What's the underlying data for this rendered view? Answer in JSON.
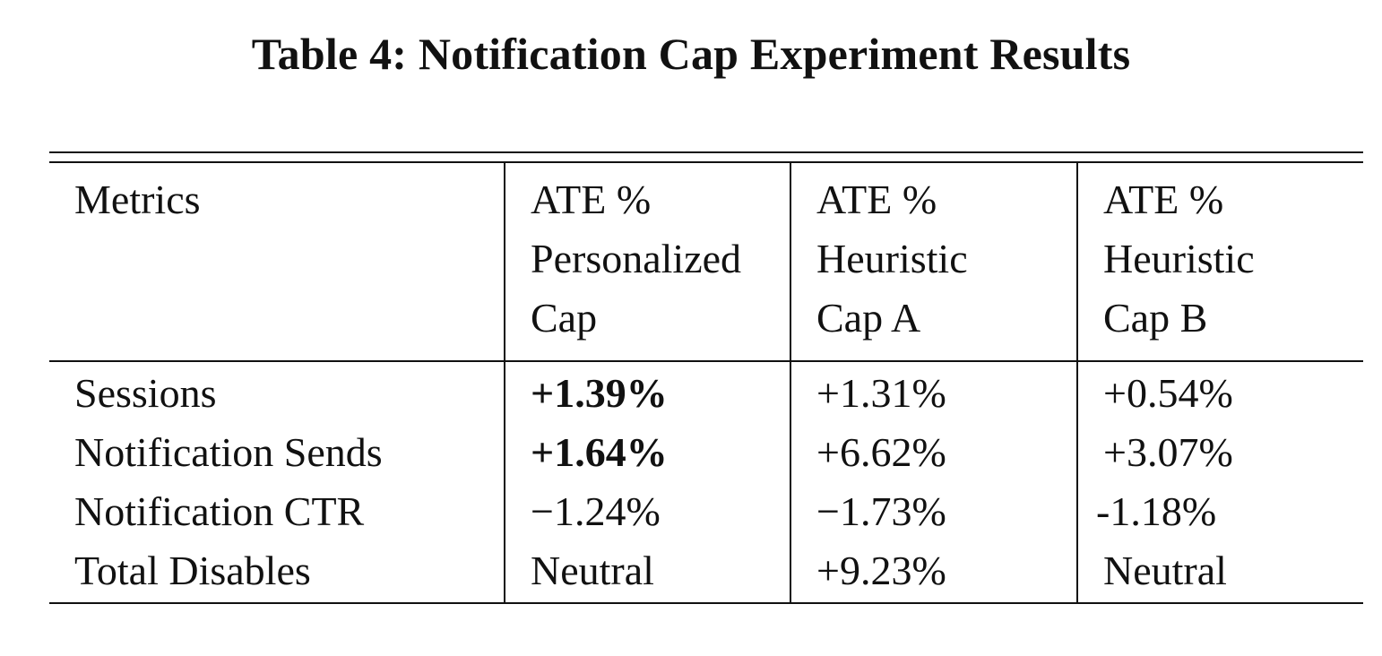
{
  "caption": "Table 4: Notification Cap Experiment Results",
  "table": {
    "headers": [
      [
        "Metrics"
      ],
      [
        "ATE %",
        "Personalized",
        "Cap"
      ],
      [
        "ATE %",
        "Heuristic",
        "Cap A"
      ],
      [
        "ATE %",
        "Heuristic",
        "Cap B"
      ]
    ],
    "rows": [
      [
        "Sessions",
        "+1.39%",
        "+1.31%",
        "+0.54%"
      ],
      [
        "Notification Sends",
        "+1.64%",
        "+6.62%",
        "+3.07%"
      ],
      [
        "Notification CTR",
        "−1.24%",
        "−1.73%",
        "-1.18%"
      ],
      [
        "Total Disables",
        "Neutral",
        "+9.23%",
        "Neutral"
      ]
    ],
    "bold_cells": [
      [
        0,
        1
      ],
      [
        1,
        1
      ]
    ]
  }
}
